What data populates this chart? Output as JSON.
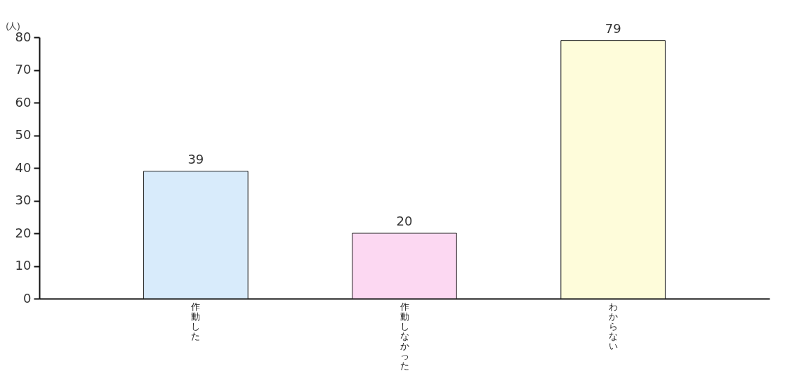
{
  "chart_data": {
    "type": "bar",
    "ylabel": "(人)",
    "categories": [
      "作動した",
      "作動しなかった",
      "わからない"
    ],
    "values": [
      39,
      20,
      79
    ],
    "colors": [
      "#d8ebfb",
      "#fcd8f2",
      "#fefcda"
    ],
    "ylim": [
      0,
      80
    ],
    "yticks": [
      0,
      10,
      20,
      30,
      40,
      50,
      60,
      70,
      80
    ],
    "grid": false,
    "data_labels": true
  }
}
